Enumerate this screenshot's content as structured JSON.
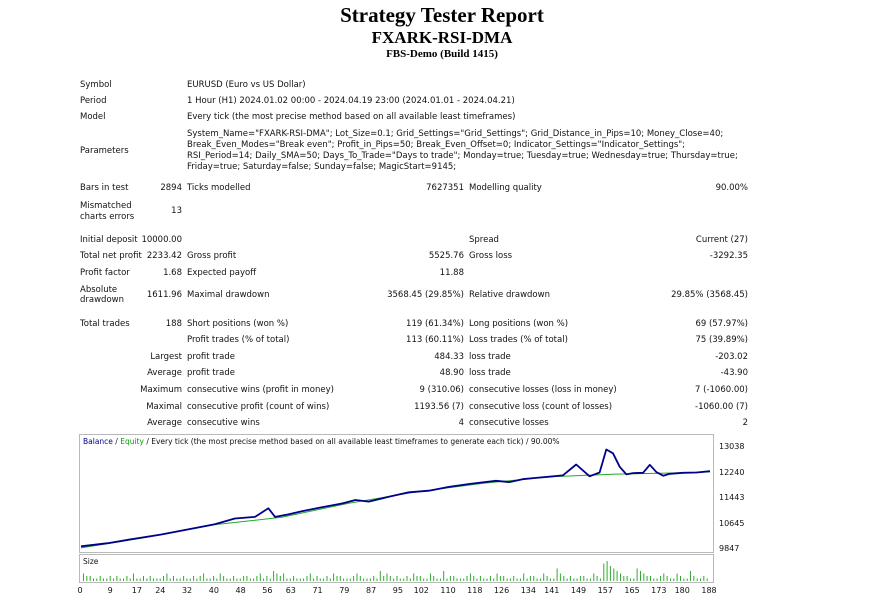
{
  "header": {
    "title": "Strategy Tester Report",
    "subtitle": "FXARK-RSI-DMA",
    "build": "FBS-Demo (Build 1415)"
  },
  "info": {
    "symbol_label": "Symbol",
    "symbol_value": "EURUSD (Euro vs US Dollar)",
    "period_label": "Period",
    "period_value": "1 Hour (H1) 2024.01.02 00:00 - 2024.04.19 23:00 (2024.01.01 - 2024.04.21)",
    "model_label": "Model",
    "model_value": "Every tick (the most precise method based on all available least timeframes)",
    "parameters_label": "Parameters",
    "parameters_value": "System_Name=\"FXARK-RSI-DMA\"; Lot_Size=0.1; Grid_Settings=\"Grid_Settings\"; Grid_Distance_in_Pips=10; Money_Close=40; Break_Even_Modes=\"Break even\"; Profit_in_Pips=50; Break_Even_Offset=0; Indicator_Settings=\"Indicator_Settings\"; RSI_Period=14; Daily_SMA=50; Days_To_Trade=\"Days to trade\"; Monday=true; Tuesday=true; Wednesday=true; Thursday=true; Friday=true; Saturday=false; Sunday=false; MagicStart=9145;"
  },
  "stats": {
    "bars_label": "Bars in test",
    "bars_value": "2894",
    "ticks_label": "Ticks modelled",
    "ticks_value": "7627351",
    "quality_label": "Modelling quality",
    "quality_value": "90.00%",
    "mismatch_label_1": "Mismatched",
    "mismatch_label_2": "charts errors",
    "mismatch_value": "13",
    "deposit_label": "Initial deposit",
    "deposit_value": "10000.00",
    "spread_label": "Spread",
    "spread_value": "Current (27)",
    "netprofit_label": "Total net profit",
    "netprofit_value": "2233.42",
    "grossprofit_label": "Gross profit",
    "grossprofit_value": "5525.76",
    "grossloss_label": "Gross loss",
    "grossloss_value": "-3292.35",
    "pf_label": "Profit factor",
    "pf_value": "1.68",
    "payoff_label": "Expected payoff",
    "payoff_value": "11.88",
    "absdd_label_1": "Absolute",
    "absdd_label_2": "drawdown",
    "absdd_value": "1611.96",
    "maxdd_label": "Maximal drawdown",
    "maxdd_value": "3568.45 (29.85%)",
    "reldd_label": "Relative drawdown",
    "reldd_value": "29.85% (3568.45)",
    "trades_label": "Total trades",
    "trades_value": "188",
    "short_label": "Short positions (won %)",
    "short_value": "119 (61.34%)",
    "long_label": "Long positions (won %)",
    "long_value": "69 (57.97%)",
    "profit_trades_label": "Profit trades (% of total)",
    "profit_trades_value": "113 (60.11%)",
    "loss_trades_label": "Loss trades (% of total)",
    "loss_trades_value": "75 (39.89%)",
    "largest_label": "Largest",
    "largest_profit_label": "profit trade",
    "largest_profit_value": "484.33",
    "largest_loss_label": "loss trade",
    "largest_loss_value": "-203.02",
    "average_label": "Average",
    "average_profit_label": "profit trade",
    "average_profit_value": "48.90",
    "average_loss_label": "loss trade",
    "average_loss_value": "-43.90",
    "maximum_label": "Maximum",
    "max_wins_label": "consecutive wins (profit in money)",
    "max_wins_value": "9 (310.06)",
    "max_losses_label": "consecutive losses (loss in money)",
    "max_losses_value": "7 (-1060.00)",
    "maximal_label": "Maximal",
    "maximal_profit_label": "consecutive profit (count of wins)",
    "maximal_profit_value": "1193.56 (7)",
    "maximal_loss_label": "consecutive loss (count of losses)",
    "maximal_loss_value": "-1060.00 (7)",
    "avg_consec_label": "Average",
    "avg_consec_wins_label": "consecutive wins",
    "avg_consec_wins_value": "4",
    "avg_consec_losses_label": "consecutive losses",
    "avg_consec_losses_value": "2"
  },
  "chart_legend": {
    "balance": "Balance",
    "sep1": " / ",
    "equity": "Equity",
    "rest": " / Every tick (the most precise method based on all available least timeframes to generate each tick) / 90.00%"
  },
  "chart_data": {
    "type": "line",
    "ylim": [
      9847,
      13038
    ],
    "y_ticks": [
      "13038",
      "12240",
      "11443",
      "10645",
      "9847"
    ],
    "x_ticks": [
      "0",
      "9",
      "17",
      "24",
      "32",
      "40",
      "48",
      "56",
      "63",
      "71",
      "79",
      "87",
      "95",
      "102",
      "110",
      "118",
      "126",
      "134",
      "141",
      "149",
      "157",
      "165",
      "173",
      "180",
      "188"
    ],
    "size_label": "Size",
    "series": [
      {
        "name": "Balance",
        "color": "#00008b",
        "x": [
          0,
          8,
          16,
          24,
          32,
          40,
          46,
          52,
          56,
          58,
          62,
          66,
          72,
          78,
          82,
          86,
          92,
          98,
          104,
          110,
          116,
          120,
          124,
          128,
          132,
          136,
          140,
          144,
          148,
          152,
          155,
          157,
          159,
          161,
          163,
          165,
          168,
          170,
          172,
          174,
          176,
          180,
          184,
          188
        ],
        "y": [
          9930,
          10030,
          10170,
          10300,
          10460,
          10620,
          10800,
          10850,
          11120,
          10850,
          10930,
          11030,
          11150,
          11270,
          11380,
          11330,
          11480,
          11620,
          11670,
          11790,
          11880,
          11930,
          11980,
          11940,
          12030,
          12070,
          12110,
          12150,
          12490,
          12120,
          12240,
          12960,
          12840,
          12420,
          12180,
          12220,
          12230,
          12480,
          12250,
          12140,
          12200,
          12230,
          12240,
          12280
        ]
      },
      {
        "name": "Equity",
        "color": "#22aa22",
        "x": [
          0,
          20,
          40,
          60,
          80,
          100,
          120,
          140,
          160,
          180,
          188
        ],
        "y": [
          9880,
          10220,
          10610,
          10840,
          11280,
          11630,
          11900,
          12110,
          12190,
          12230,
          12260
        ]
      }
    ],
    "size_values": [
      3,
      2,
      2,
      1,
      1,
      2,
      1,
      1,
      2,
      1,
      2,
      1,
      1,
      2,
      1,
      3,
      1,
      1,
      2,
      1,
      2,
      1,
      1,
      1,
      2,
      3,
      1,
      2,
      1,
      1,
      2,
      1,
      1,
      2,
      1,
      2,
      3,
      1,
      1,
      2,
      1,
      3,
      2,
      1,
      1,
      2,
      1,
      1,
      2,
      2,
      1,
      1,
      2,
      3,
      1,
      2,
      1,
      4,
      3,
      2,
      3,
      1,
      1,
      2,
      1,
      1,
      1,
      2,
      3,
      1,
      2,
      1,
      1,
      2,
      1,
      3,
      2,
      2,
      1,
      1,
      1,
      2,
      3,
      2,
      1,
      1,
      1,
      2,
      1,
      4,
      2,
      3,
      2,
      1,
      2,
      1,
      1,
      2,
      1,
      3,
      2,
      2,
      1,
      1,
      3,
      2,
      1,
      1,
      4,
      1,
      2,
      2,
      1,
      1,
      1,
      2,
      3,
      2,
      1,
      2,
      1,
      1,
      2,
      1,
      3,
      2,
      2,
      1,
      1,
      2,
      1,
      1,
      3,
      1,
      2,
      2,
      1,
      1,
      3,
      2,
      1,
      1,
      5,
      3,
      2,
      1,
      2,
      1,
      1,
      2,
      2,
      1,
      1,
      3,
      2,
      1,
      7,
      8,
      6,
      5,
      4,
      3,
      2,
      2,
      1,
      1,
      5,
      4,
      3,
      2,
      2,
      1,
      1,
      2,
      3,
      2,
      1,
      1,
      3,
      2,
      1,
      1,
      4,
      2,
      1,
      1,
      2,
      1
    ]
  }
}
